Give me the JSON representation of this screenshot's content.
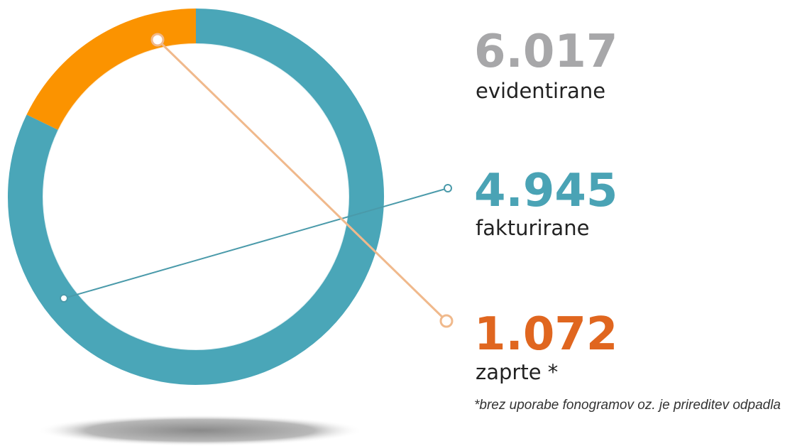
{
  "chart_data": {
    "type": "donut",
    "total": 6017,
    "total_label": "6.017",
    "total_name": "evidentirane",
    "total_color": "#a7a7a9",
    "categories": [
      "fakturirane",
      "zaprte *"
    ],
    "values": [
      4945,
      1072
    ],
    "value_labels": [
      "4.945",
      "1.072"
    ],
    "colors": [
      "#4aa6b8",
      "#fb9300"
    ],
    "label_colors": [
      "#4aa3b5",
      "#e0661f"
    ],
    "line_colors": [
      "#4a9aaa",
      "#f0b98c"
    ],
    "note": "*brez uporabe fonogramov oz. je prireditev odpadla"
  }
}
